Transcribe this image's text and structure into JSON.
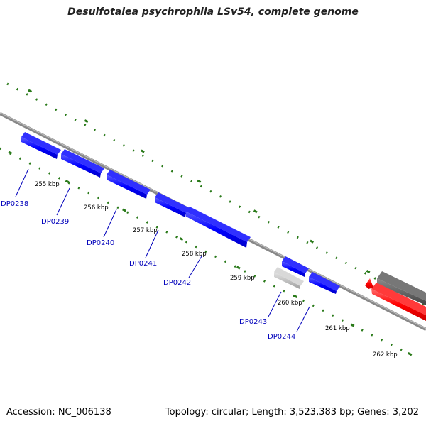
{
  "title": "Desulfotalea psychrophila LSv54, complete genome",
  "footer": {
    "accession": "Accession: NC_006138",
    "summary": "Topology: circular; Length: 3,523,383 bp; Genes: 3,202"
  },
  "colors": {
    "forward_gene": "#0000ff",
    "reverse_gene": "#ff0000",
    "pseudogene": "#bbbbbb",
    "other_feature": "#666666",
    "backbone": "#888888",
    "tick": "#2a7a1a",
    "gene_label": "#0000bb"
  },
  "kbp_labels": [
    "255 kbp",
    "256 kbp",
    "257 kbp",
    "258 kbp",
    "259 kbp",
    "260 kbp",
    "261 kbp",
    "262 kbp"
  ],
  "gene_labels": [
    "DP0238",
    "DP0239",
    "DP0240",
    "DP0241",
    "DP0242",
    "DP0243",
    "DP0244"
  ]
}
